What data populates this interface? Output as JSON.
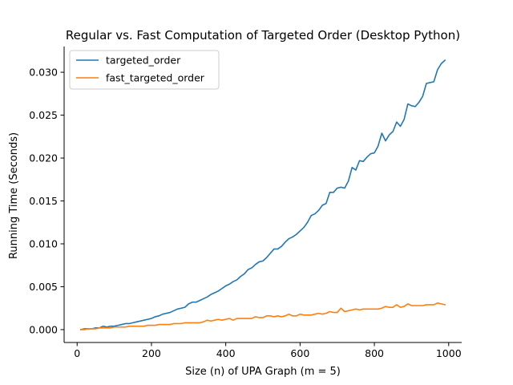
{
  "chart_data": {
    "type": "line",
    "title": "Regular vs. Fast Computation of Targeted Order (Desktop Python)",
    "xlabel": "Size (n) of UPA Graph (m = 5)",
    "ylabel": "Running Time (Seconds)",
    "xlim": [
      -35,
      1035
    ],
    "ylim": [
      -0.0015,
      0.033
    ],
    "xticks": [
      0,
      200,
      400,
      600,
      800,
      1000
    ],
    "xtick_labels": [
      "0",
      "200",
      "400",
      "600",
      "800",
      "1000"
    ],
    "yticks": [
      0.0,
      0.005,
      0.01,
      0.015,
      0.02,
      0.025,
      0.03
    ],
    "ytick_labels": [
      "0.000",
      "0.005",
      "0.010",
      "0.015",
      "0.020",
      "0.025",
      "0.030"
    ],
    "legend_position": "top-left",
    "grid": false,
    "x": [
      10,
      20,
      30,
      40,
      50,
      60,
      70,
      80,
      90,
      100,
      110,
      120,
      130,
      140,
      150,
      160,
      170,
      180,
      190,
      200,
      210,
      220,
      230,
      240,
      250,
      260,
      270,
      280,
      290,
      300,
      310,
      320,
      330,
      340,
      350,
      360,
      370,
      380,
      390,
      400,
      410,
      420,
      430,
      440,
      450,
      460,
      470,
      480,
      490,
      500,
      510,
      520,
      530,
      540,
      550,
      560,
      570,
      580,
      590,
      600,
      610,
      620,
      630,
      640,
      650,
      660,
      670,
      680,
      690,
      700,
      710,
      720,
      730,
      740,
      750,
      760,
      770,
      780,
      790,
      800,
      810,
      820,
      830,
      840,
      850,
      860,
      870,
      880,
      890,
      900,
      910,
      920,
      930,
      940,
      950,
      960,
      970,
      980,
      990
    ],
    "series": [
      {
        "name": "targeted_order",
        "color": "#1f77b4",
        "values": [
          0.0,
          0.0001,
          0.0001,
          0.0001,
          0.0002,
          0.0002,
          0.0004,
          0.0003,
          0.0004,
          0.0004,
          0.0005,
          0.0006,
          0.0007,
          0.0007,
          0.0008,
          0.0009,
          0.001,
          0.0011,
          0.0012,
          0.0013,
          0.0015,
          0.0016,
          0.0018,
          0.0019,
          0.002,
          0.0022,
          0.0024,
          0.0025,
          0.0026,
          0.003,
          0.0032,
          0.0032,
          0.0034,
          0.0036,
          0.0038,
          0.0041,
          0.0043,
          0.0045,
          0.0048,
          0.0051,
          0.0053,
          0.0056,
          0.0058,
          0.0062,
          0.0065,
          0.007,
          0.0072,
          0.0076,
          0.0079,
          0.008,
          0.0084,
          0.0089,
          0.0094,
          0.0094,
          0.0097,
          0.0102,
          0.0106,
          0.0108,
          0.0111,
          0.0115,
          0.0119,
          0.0125,
          0.0133,
          0.0135,
          0.0139,
          0.0145,
          0.0147,
          0.016,
          0.016,
          0.0165,
          0.0166,
          0.0165,
          0.0173,
          0.0189,
          0.0186,
          0.0197,
          0.0196,
          0.0201,
          0.0205,
          0.0206,
          0.0214,
          0.0229,
          0.022,
          0.0227,
          0.0231,
          0.0242,
          0.0237,
          0.0245,
          0.0263,
          0.0261,
          0.026,
          0.0265,
          0.0272,
          0.0287,
          0.0288,
          0.0289,
          0.0303,
          0.031,
          0.0314
        ]
      },
      {
        "name": "fast_targeted_order",
        "color": "#ff7f0e",
        "values": [
          0.0,
          0.0,
          0.0001,
          0.0001,
          0.0001,
          0.0002,
          0.0002,
          0.0002,
          0.0002,
          0.0003,
          0.0003,
          0.0003,
          0.0003,
          0.0004,
          0.0004,
          0.0004,
          0.0004,
          0.0004,
          0.0005,
          0.0005,
          0.0005,
          0.0006,
          0.0006,
          0.0006,
          0.0006,
          0.0007,
          0.0007,
          0.0007,
          0.0008,
          0.0008,
          0.0008,
          0.0008,
          0.0008,
          0.0009,
          0.0011,
          0.001,
          0.0011,
          0.0012,
          0.0011,
          0.0012,
          0.0013,
          0.0011,
          0.0013,
          0.0013,
          0.0013,
          0.0013,
          0.0013,
          0.0015,
          0.0014,
          0.0014,
          0.0016,
          0.0016,
          0.0015,
          0.0016,
          0.0015,
          0.0016,
          0.0018,
          0.0016,
          0.0016,
          0.0018,
          0.0017,
          0.0017,
          0.0017,
          0.0018,
          0.0019,
          0.0018,
          0.0019,
          0.0021,
          0.002,
          0.002,
          0.0025,
          0.0021,
          0.0022,
          0.0023,
          0.0024,
          0.0023,
          0.0024,
          0.0024,
          0.0024,
          0.0024,
          0.0024,
          0.0025,
          0.0027,
          0.0026,
          0.0026,
          0.0029,
          0.0026,
          0.0027,
          0.003,
          0.0028,
          0.0028,
          0.0028,
          0.0028,
          0.0029,
          0.0029,
          0.0029,
          0.0031,
          0.003,
          0.0029
        ]
      }
    ]
  }
}
